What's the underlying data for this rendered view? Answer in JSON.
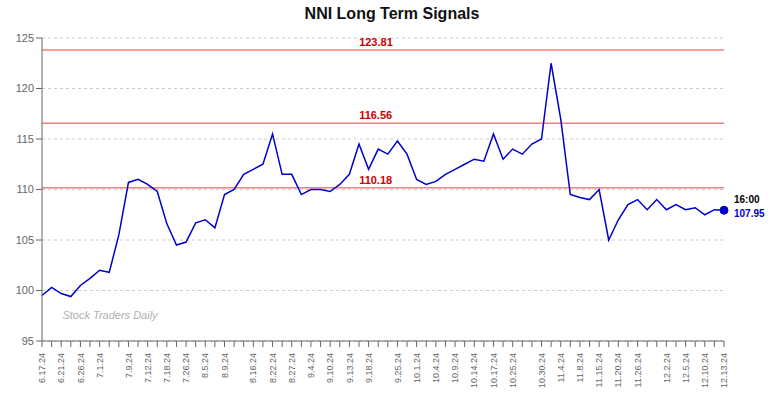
{
  "chart_data": {
    "type": "line",
    "title": "NNI Long Term Signals",
    "watermark": "Stock Traders Daily",
    "color": "#0000cc",
    "grid": true,
    "ylim": [
      95,
      125
    ],
    "yticks": [
      95,
      100,
      105,
      110,
      115,
      120,
      125
    ],
    "reference_lines": [
      {
        "value": 123.81,
        "label": "123.81",
        "color": "#f08080",
        "label_color": "#cc0000"
      },
      {
        "value": 116.56,
        "label": "116.56",
        "color": "#f08080",
        "label_color": "#cc0000"
      },
      {
        "value": 110.18,
        "label": "110.18",
        "color": "#f08080",
        "label_color": "#cc0000"
      }
    ],
    "end_labels": [
      {
        "text": "16:00",
        "color": "#000000"
      },
      {
        "text": "107.95",
        "color": "#0000cc"
      }
    ],
    "categories": [
      "6.17.24",
      null,
      "6.21.24",
      null,
      "6.26.24",
      null,
      "7.1.24",
      null,
      null,
      "7.9.24",
      null,
      "7.12.24",
      null,
      "7.18.24",
      null,
      "7.26.24",
      null,
      "8.5.24",
      null,
      "8.9.24",
      null,
      null,
      "8.16.24",
      null,
      "8.22.24",
      null,
      "8.27.24",
      null,
      "9.4.24",
      null,
      "9.10.24",
      null,
      "9.13.24",
      null,
      "9.18.24",
      null,
      null,
      "9.25.24",
      null,
      "10.1.24",
      null,
      "10.4.24",
      null,
      "10.9.24",
      null,
      "10.14.24",
      null,
      "10.17.24",
      null,
      "10.25.24",
      null,
      null,
      "10.30.24",
      null,
      "11.4.24",
      null,
      "11.8.24",
      null,
      "11.15.24",
      null,
      "11.20.24",
      null,
      "11.26.24",
      null,
      null,
      "12.2.24",
      null,
      "12.5.24",
      null,
      "12.10.24",
      null,
      "12.13.24"
    ],
    "values": [
      99.5,
      100.3,
      99.7,
      99.4,
      100.5,
      101.2,
      102.0,
      101.8,
      105.5,
      110.7,
      111.0,
      110.5,
      109.8,
      106.6,
      104.5,
      104.8,
      106.7,
      107.0,
      106.2,
      109.5,
      110.0,
      111.5,
      112.0,
      112.5,
      115.5,
      111.5,
      111.5,
      109.5,
      110.0,
      110.0,
      109.8,
      110.5,
      111.5,
      114.5,
      112.0,
      114.0,
      113.5,
      114.8,
      113.5,
      111.0,
      110.5,
      110.8,
      111.5,
      112.0,
      112.5,
      113.0,
      112.8,
      115.5,
      113.0,
      114.0,
      113.5,
      114.5,
      115.0,
      122.5,
      117.0,
      109.5,
      109.2,
      109.0,
      110.0,
      105.0,
      107.0,
      108.5,
      109.0,
      108.0,
      109.0,
      108.0,
      108.5,
      108.0,
      108.2,
      107.5,
      108.0,
      107.95
    ]
  }
}
